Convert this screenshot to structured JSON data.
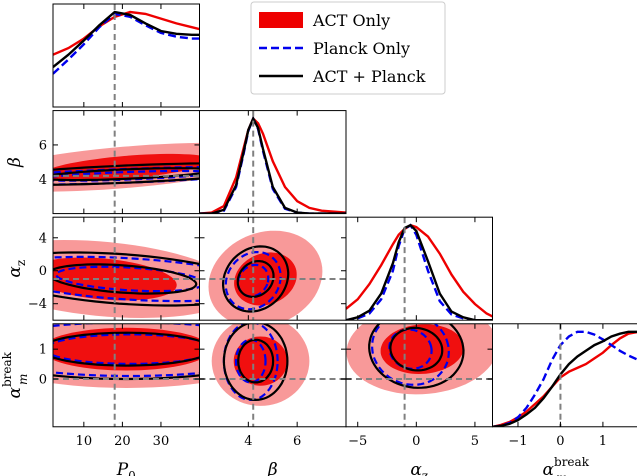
{
  "chart_data": {
    "type": "corner",
    "parameters": [
      {
        "key": "P0",
        "label_main": "P",
        "label_sub": "0",
        "range": [
          2,
          40
        ],
        "ticks": [
          10,
          20,
          30
        ],
        "tick_labels": [
          "10",
          "20",
          "30"
        ],
        "truth": 18
      },
      {
        "key": "beta",
        "label_main": "β",
        "label_sub": "",
        "range": [
          2,
          8
        ],
        "ticks": [
          4,
          6
        ],
        "tick_labels": [
          "4",
          "6"
        ],
        "truth": 4.2
      },
      {
        "key": "alpha_z",
        "label_main": "α",
        "label_sub": "z",
        "range": [
          -6,
          6.5
        ],
        "ticks": [
          -5,
          0,
          5
        ],
        "tick_labels": [
          "−5",
          "0",
          "5"
        ],
        "truth": -1
      },
      {
        "key": "alpha_m_break",
        "label_main": "α",
        "label_sub": "m",
        "label_sup": "break",
        "range": [
          -1.6,
          1.85
        ],
        "ticks": [
          -1,
          0,
          1
        ],
        "tick_labels": [
          "−1",
          "0",
          "1"
        ],
        "truth": 0
      }
    ],
    "row_ticks": {
      "beta": {
        "ticks": [
          4,
          6
        ],
        "tick_labels": [
          "4",
          "6"
        ]
      },
      "alpha_z": {
        "ticks": [
          -4,
          0,
          4
        ],
        "tick_labels": [
          "−4",
          "0",
          "4"
        ]
      },
      "alpha_m_break": {
        "ticks": [
          0,
          1
        ],
        "tick_labels": [
          "0",
          "1"
        ]
      }
    },
    "series": [
      {
        "name": "ACT Only",
        "color": "#ee0000",
        "style": "filled"
      },
      {
        "name": "Planck Only",
        "color": "#0000ee",
        "style": "dashed"
      },
      {
        "name": "ACT + Planck",
        "color": "#000000",
        "style": "solid"
      }
    ],
    "marginals": {
      "P0": {
        "x": [
          2,
          6,
          10,
          14,
          18,
          22,
          26,
          30,
          34,
          38,
          40
        ],
        "ACT Only": [
          0.55,
          0.62,
          0.72,
          0.85,
          0.95,
          1.0,
          0.98,
          0.93,
          0.88,
          0.84,
          0.82
        ],
        "Planck Only": [
          0.35,
          0.5,
          0.66,
          0.84,
          0.98,
          0.95,
          0.86,
          0.78,
          0.74,
          0.72,
          0.72
        ],
        "ACT + Planck": [
          0.42,
          0.55,
          0.7,
          0.86,
          1.0,
          0.97,
          0.88,
          0.8,
          0.77,
          0.76,
          0.76
        ]
      },
      "beta": {
        "x": [
          2,
          2.5,
          3,
          3.5,
          3.8,
          4.0,
          4.2,
          4.4,
          4.6,
          5.0,
          5.5,
          6,
          6.5,
          7,
          8
        ],
        "ACT Only": [
          0.0,
          0.01,
          0.08,
          0.38,
          0.68,
          0.88,
          1.0,
          0.95,
          0.84,
          0.55,
          0.28,
          0.13,
          0.06,
          0.03,
          0.01
        ],
        "Planck Only": [
          0.0,
          0.0,
          0.03,
          0.28,
          0.62,
          0.87,
          1.0,
          0.89,
          0.66,
          0.26,
          0.05,
          0.01,
          0.0,
          0.0,
          0.0
        ],
        "ACT + Planck": [
          0.0,
          0.0,
          0.04,
          0.3,
          0.64,
          0.88,
          1.0,
          0.9,
          0.68,
          0.28,
          0.06,
          0.01,
          0.0,
          0.0,
          0.0
        ]
      },
      "alpha_z": {
        "x": [
          -6,
          -5,
          -4,
          -3,
          -2,
          -1.5,
          -1,
          -0.5,
          0,
          1,
          2,
          3,
          4,
          5,
          6,
          6.5
        ],
        "ACT Only": [
          0.12,
          0.22,
          0.38,
          0.58,
          0.8,
          0.9,
          0.96,
          1.0,
          0.98,
          0.88,
          0.7,
          0.48,
          0.3,
          0.17,
          0.07,
          0.04
        ],
        "Planck Only": [
          0.0,
          0.02,
          0.07,
          0.22,
          0.52,
          0.78,
          0.96,
          1.0,
          0.9,
          0.52,
          0.2,
          0.06,
          0.02,
          0.0,
          0.0,
          0.0
        ],
        "ACT + Planck": [
          0.0,
          0.03,
          0.1,
          0.28,
          0.6,
          0.82,
          0.97,
          1.0,
          0.94,
          0.62,
          0.28,
          0.09,
          0.03,
          0.0,
          0.0,
          0.0
        ]
      },
      "alpha_m_break": {
        "x": [
          -1.6,
          -1.4,
          -1.2,
          -1.0,
          -0.8,
          -0.6,
          -0.4,
          -0.2,
          0,
          0.2,
          0.4,
          0.6,
          0.8,
          1.0,
          1.2,
          1.4,
          1.6,
          1.85
        ],
        "ACT Only": [
          0.0,
          0.02,
          0.05,
          0.1,
          0.16,
          0.24,
          0.32,
          0.42,
          0.52,
          0.58,
          0.62,
          0.66,
          0.72,
          0.78,
          0.86,
          0.93,
          0.98,
          1.0
        ],
        "Planck Only": [
          0.0,
          0.01,
          0.04,
          0.1,
          0.2,
          0.34,
          0.5,
          0.7,
          0.86,
          0.95,
          1.0,
          1.0,
          0.97,
          0.92,
          0.86,
          0.8,
          0.75,
          0.7
        ],
        "ACT + Planck": [
          0.0,
          0.01,
          0.03,
          0.07,
          0.13,
          0.2,
          0.3,
          0.42,
          0.55,
          0.66,
          0.74,
          0.8,
          0.86,
          0.9,
          0.95,
          0.98,
          1.0,
          1.0
        ]
      }
    },
    "joint_contours": [
      {
        "x": "P0",
        "y": "beta",
        "ACT Only": {
          "center": [
            21,
            4.7
          ],
          "width": [
            80,
            2.4
          ],
          "angle_deg": 7
        },
        "Planck Only": {
          "center": [
            21,
            4.2
          ],
          "width": [
            80,
            0.8
          ],
          "angle_deg": 3
        },
        "ACT + Planck": {
          "center": [
            21,
            4.3
          ],
          "width": [
            80,
            1.0
          ],
          "angle_deg": 3.5
        }
      },
      {
        "x": "P0",
        "y": "alpha_z",
        "ACT Only": {
          "center": [
            15,
            -1
          ],
          "width": [
            70,
            9
          ],
          "angle_deg": -8
        },
        "Planck Only": {
          "center": [
            22,
            -1
          ],
          "width": [
            70,
            5
          ],
          "angle_deg": -5
        },
        "ACT + Planck": {
          "center": [
            20,
            -1
          ],
          "width": [
            70,
            6
          ],
          "angle_deg": -6
        }
      },
      {
        "x": "P0",
        "y": "alpha_m_break",
        "ACT Only": {
          "center": [
            21,
            1.0
          ],
          "width": [
            80,
            2.6
          ],
          "angle_deg": 0
        },
        "Planck Only": {
          "center": [
            22,
            1.0
          ],
          "width": [
            80,
            1.8
          ],
          "angle_deg": 0
        },
        "ACT + Planck": {
          "center": [
            21,
            1.0
          ],
          "width": [
            80,
            2.0
          ],
          "angle_deg": 0
        }
      },
      {
        "x": "beta",
        "y": "alpha_z",
        "ACT Only": {
          "center": [
            4.7,
            -1
          ],
          "width": [
            4.5,
            12
          ],
          "angle_deg": -20
        },
        "Planck Only": {
          "center": [
            4.2,
            -1.2
          ],
          "width": [
            2.2,
            7
          ],
          "angle_deg": -10
        },
        "ACT + Planck": {
          "center": [
            4.3,
            -1.0
          ],
          "width": [
            2.6,
            8
          ],
          "angle_deg": -12
        }
      },
      {
        "x": "beta",
        "y": "alpha_m_break",
        "ACT Only": {
          "center": [
            4.5,
            0.6
          ],
          "width": [
            4.0,
            3.0
          ],
          "angle_deg": 0
        },
        "Planck Only": {
          "center": [
            4.1,
            0.6
          ],
          "width": [
            2.2,
            2.6
          ],
          "angle_deg": 0
        },
        "ACT + Planck": {
          "center": [
            4.3,
            0.6
          ],
          "width": [
            2.6,
            2.6
          ],
          "angle_deg": 0
        }
      },
      {
        "x": "alpha_z",
        "y": "alpha_m_break",
        "ACT Only": {
          "center": [
            0.5,
            1.0
          ],
          "width": [
            13,
            3.0
          ],
          "angle_deg": 12
        },
        "Planck Only": {
          "center": [
            -0.5,
            1.0
          ],
          "width": [
            6.5,
            2.4
          ],
          "angle_deg": 8
        },
        "ACT + Planck": {
          "center": [
            0.0,
            1.0
          ],
          "width": [
            8,
            2.6
          ],
          "angle_deg": 10
        }
      }
    ],
    "truth_line_color": "#808080",
    "legend_position": "top-center"
  }
}
